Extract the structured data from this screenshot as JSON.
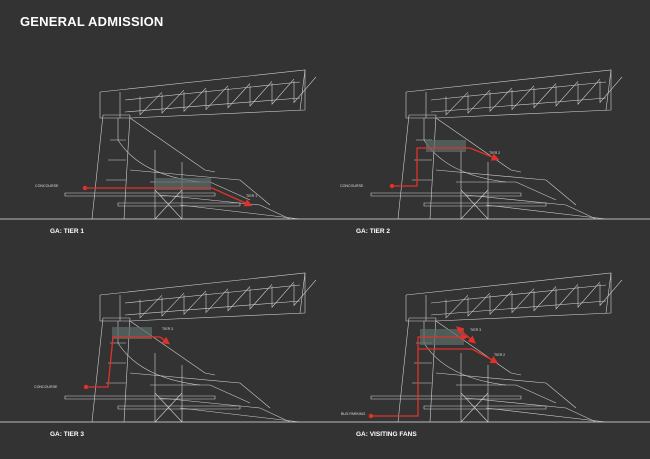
{
  "title": "GENERAL ADMISSION",
  "colors": {
    "background": "#333333",
    "route": "#e0322a",
    "structure": "#cfcfcf"
  },
  "panels": [
    {
      "label": "GA: TIER 1",
      "annotations": [
        "CONCOURSE",
        "TIER 1"
      ]
    },
    {
      "label": "GA: TIER 2",
      "annotations": [
        "CONCOURSE",
        "TIER 2"
      ]
    },
    {
      "label": "GA: TIER 3",
      "annotations": [
        "CONCOURSE",
        "TIER 3"
      ]
    },
    {
      "label": "GA: VISITING FANS",
      "annotations": [
        "BUS PARKING",
        "TIER 3",
        "TIER 2"
      ]
    }
  ]
}
